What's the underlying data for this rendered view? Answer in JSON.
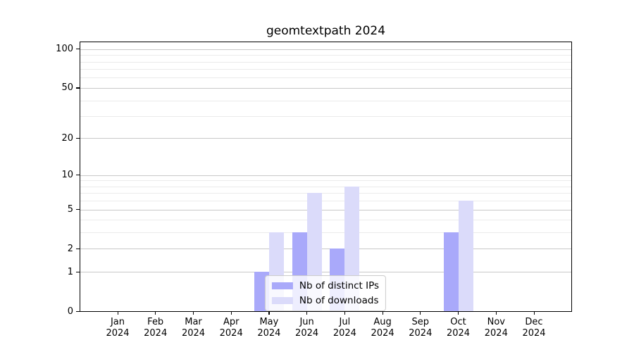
{
  "chart_data": {
    "type": "bar",
    "title": "geomtextpath 2024",
    "x_months": [
      "Jan",
      "Feb",
      "Mar",
      "Apr",
      "May",
      "Jun",
      "Jul",
      "Aug",
      "Sep",
      "Oct",
      "Nov",
      "Dec"
    ],
    "x_year": "2024",
    "categories": [
      "Jan 2024",
      "Feb 2024",
      "Mar 2024",
      "Apr 2024",
      "May 2024",
      "Jun 2024",
      "Jul 2024",
      "Aug 2024",
      "Sep 2024",
      "Oct 2024",
      "Nov 2024",
      "Dec 2024"
    ],
    "series": [
      {
        "name": "Nb of distinct IPs",
        "color": "#a9a9fa",
        "values": [
          0,
          0,
          0,
          0,
          1,
          3,
          2,
          0,
          0,
          3,
          0,
          0
        ]
      },
      {
        "name": "Nb of downloads",
        "color": "#dbdbfa",
        "values": [
          0,
          0,
          0,
          0,
          3,
          7,
          8,
          0,
          0,
          6,
          0,
          0
        ]
      }
    ],
    "yscale": "log1p",
    "ylim": [
      0,
      113
    ],
    "yticks": [
      0,
      1,
      2,
      5,
      10,
      20,
      50,
      100
    ],
    "yticks_minor": [
      3,
      4,
      6,
      7,
      8,
      9,
      30,
      40,
      60,
      70,
      80,
      90
    ],
    "grid": true,
    "legend_position": "lower center",
    "colors": {
      "major_grid": "#c9c9c9",
      "minor_grid": "#ebebeb",
      "axis": "#000000",
      "background": "#ffffff"
    }
  }
}
